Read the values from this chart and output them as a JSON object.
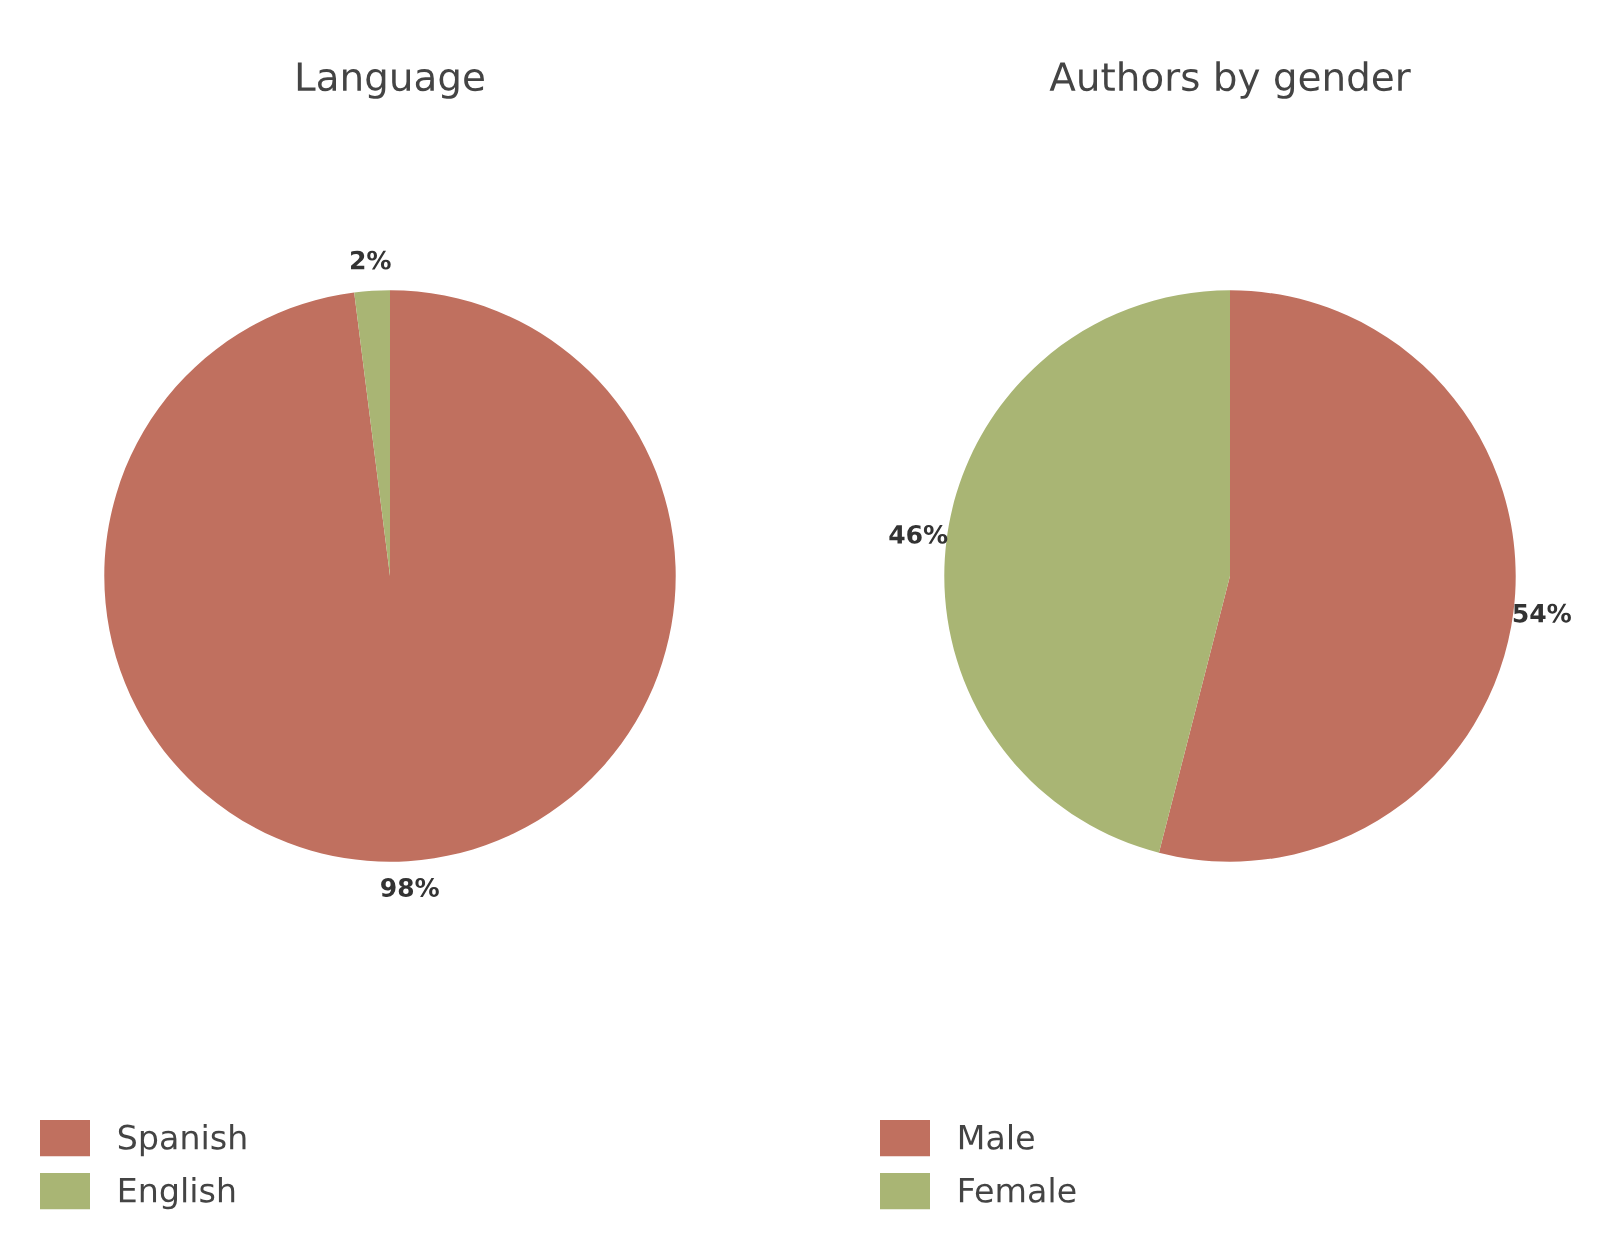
{
  "chart_data": [
    {
      "type": "pie",
      "title": "Language",
      "categories": [
        "Spanish",
        "English"
      ],
      "values": [
        98,
        2
      ],
      "value_labels": [
        "98%",
        "2%"
      ],
      "colors": [
        "#c0705f",
        "#a9b574"
      ],
      "legend": "bottom left"
    },
    {
      "type": "pie",
      "title": "Authors by gender",
      "categories": [
        "Male",
        "Female"
      ],
      "values": [
        54,
        46
      ],
      "value_labels": [
        "54%",
        "46%"
      ],
      "colors": [
        "#c0705f",
        "#a9b574"
      ],
      "legend": "bottom left"
    }
  ]
}
